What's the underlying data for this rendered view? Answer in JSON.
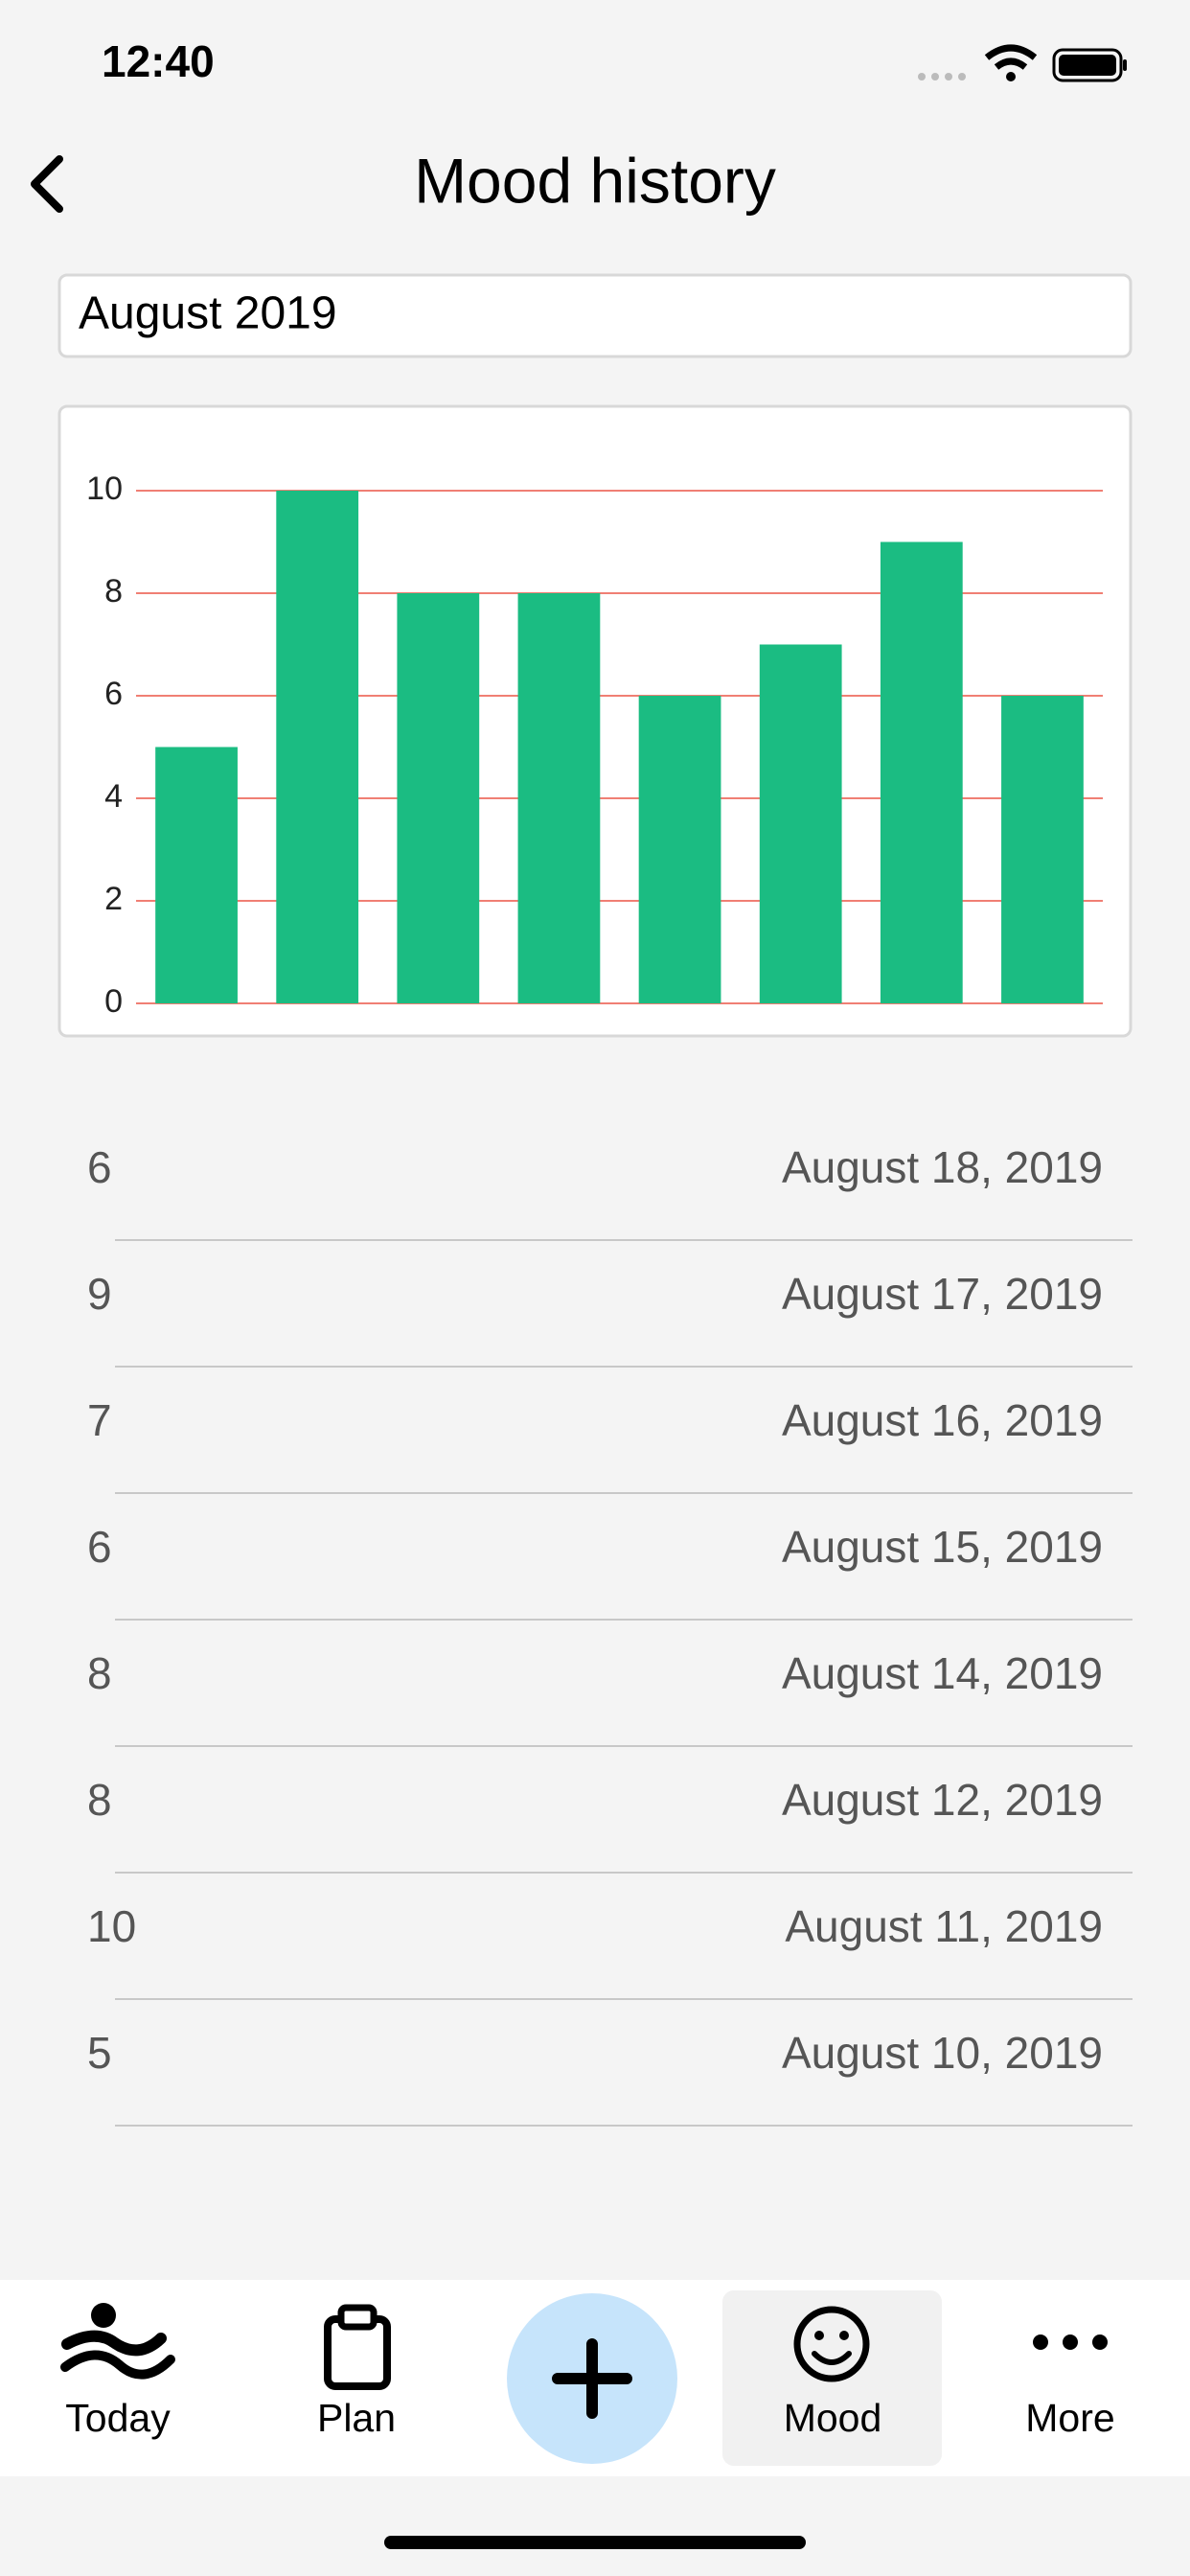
{
  "status_bar": {
    "time": "12:40"
  },
  "header": {
    "title": "Mood history"
  },
  "month_picker": {
    "value": "August 2019"
  },
  "chart_data": {
    "type": "bar",
    "categories": [
      null,
      null,
      null,
      null,
      null,
      null,
      null,
      null
    ],
    "values": [
      5,
      10,
      8,
      8,
      6,
      7,
      9,
      6
    ],
    "color": "#1bbc82",
    "ylim": [
      0,
      10
    ],
    "yticks": [
      0,
      2,
      4,
      6,
      8,
      10
    ],
    "grid": true,
    "grid_color": "#f07f74"
  },
  "entries": [
    {
      "value": 6,
      "date": "August 18, 2019"
    },
    {
      "value": 9,
      "date": "August 17, 2019"
    },
    {
      "value": 7,
      "date": "August 16, 2019"
    },
    {
      "value": 6,
      "date": "August 15, 2019"
    },
    {
      "value": 8,
      "date": "August 14, 2019"
    },
    {
      "value": 8,
      "date": "August 12, 2019"
    },
    {
      "value": 10,
      "date": "August 11, 2019"
    },
    {
      "value": 5,
      "date": "August 10, 2019"
    }
  ],
  "tab_bar": {
    "tabs": [
      "Today",
      "Plan",
      "Mood",
      "More"
    ],
    "selected": "Mood"
  }
}
